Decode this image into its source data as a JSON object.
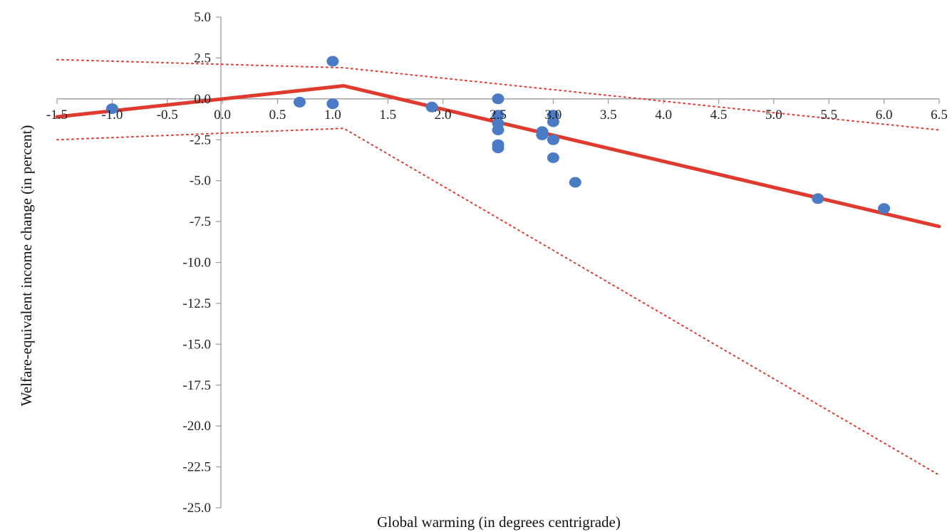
{
  "chart_data": {
    "type": "scatter",
    "title": "",
    "xlabel": "Global warming (in degrees centrigrade)",
    "ylabel": "Welfare-equivalent income change (in percent)",
    "xlim": [
      -1.5,
      6.5
    ],
    "ylim": [
      -25.0,
      5.0
    ],
    "x_ticks": [
      "-1.5",
      "-1.0",
      "-0.5",
      "0.0",
      "0.5",
      "1.0",
      "1.5",
      "2.0",
      "2.5",
      "3.0",
      "3.5",
      "4.0",
      "4.5",
      "5.0",
      "5.5",
      "6.0",
      "6.5"
    ],
    "y_ticks": [
      "5.0",
      "2.5",
      "0.0",
      "-2.5",
      "-5.0",
      "-7.5",
      "-10.0",
      "-12.5",
      "-15.0",
      "-17.5",
      "-20.0",
      "-22.5",
      "-25.0"
    ],
    "grid": false,
    "legend": "none",
    "points": [
      {
        "x": -1.0,
        "y": -0.6
      },
      {
        "x": 0.7,
        "y": -0.2
      },
      {
        "x": 1.0,
        "y": 2.3
      },
      {
        "x": 1.0,
        "y": -0.3
      },
      {
        "x": 1.9,
        "y": -0.5
      },
      {
        "x": 2.5,
        "y": 0.0
      },
      {
        "x": 2.5,
        "y": -1.0
      },
      {
        "x": 2.5,
        "y": -1.5
      },
      {
        "x": 2.5,
        "y": -1.9
      },
      {
        "x": 2.5,
        "y": -2.8
      },
      {
        "x": 2.5,
        "y": -3.0
      },
      {
        "x": 2.9,
        "y": -2.0
      },
      {
        "x": 2.9,
        "y": -2.2
      },
      {
        "x": 3.0,
        "y": -1.0
      },
      {
        "x": 3.0,
        "y": -1.4
      },
      {
        "x": 3.0,
        "y": -2.5
      },
      {
        "x": 3.0,
        "y": -3.6
      },
      {
        "x": 3.2,
        "y": -5.1
      },
      {
        "x": 5.4,
        "y": -6.1
      },
      {
        "x": 6.0,
        "y": -6.7
      }
    ],
    "fit_line": {
      "x": [
        -1.5,
        1.1,
        6.5
      ],
      "y": [
        -1.1,
        0.8,
        -7.8
      ],
      "color": "#e03a2f"
    },
    "confidence_bounds": [
      {
        "x": [
          -1.5,
          1.1,
          6.5
        ],
        "y": [
          2.4,
          1.9,
          -1.9
        ]
      },
      {
        "x": [
          -1.5,
          1.1,
          6.5
        ],
        "y": [
          -2.5,
          -1.8,
          -23.0
        ]
      }
    ],
    "colors": {
      "points": "#4a7bc4",
      "fit_line": "#e03a2f",
      "bounds": "#e03a2f",
      "axis": "#999999"
    }
  }
}
